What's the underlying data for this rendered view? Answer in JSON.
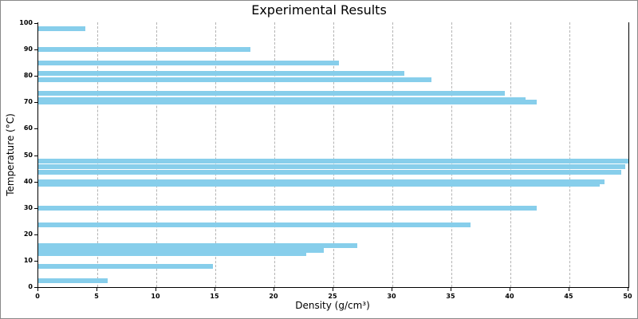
{
  "window": {
    "background_color": "#ffffff",
    "border_color": "#8a8a8a"
  },
  "chart_data": {
    "type": "bar",
    "orientation": "horizontal",
    "title": "Experimental Results",
    "xlabel": "Density (g/cm³)",
    "ylabel": "Temperature (°C)",
    "xlim": [
      0,
      50
    ],
    "ylim": [
      0,
      100
    ],
    "x_ticks": [
      0,
      5,
      10,
      15,
      20,
      25,
      30,
      35,
      40,
      45,
      50
    ],
    "y_ticks": [
      0,
      10,
      20,
      30,
      40,
      50,
      60,
      70,
      80,
      90,
      100
    ],
    "grid": "vertical-dashed-gray",
    "legend": "none",
    "bar_color": "#87CEEB",
    "axis_color": "#000000",
    "gridline_color": "#b4b4b4",
    "points": [
      {
        "temperature": 98,
        "density": 4.0
      },
      {
        "temperature": 90,
        "density": 18.0
      },
      {
        "temperature": 85,
        "density": 25.5
      },
      {
        "temperature": 81,
        "density": 31.0
      },
      {
        "temperature": 78.5,
        "density": 33.3
      },
      {
        "temperature": 73.5,
        "density": 39.5
      },
      {
        "temperature": 71,
        "density": 41.3
      },
      {
        "temperature": 70,
        "density": 42.2
      },
      {
        "temperature": 47.7,
        "density": 50.0
      },
      {
        "temperature": 45.5,
        "density": 49.7
      },
      {
        "temperature": 43.5,
        "density": 49.4
      },
      {
        "temperature": 40,
        "density": 48.0
      },
      {
        "temperature": 39,
        "density": 47.6
      },
      {
        "temperature": 30,
        "density": 42.2
      },
      {
        "temperature": 23.5,
        "density": 36.6
      },
      {
        "temperature": 15.7,
        "density": 27.0
      },
      {
        "temperature": 14,
        "density": 24.2
      },
      {
        "temperature": 12.7,
        "density": 22.7
      },
      {
        "temperature": 8,
        "density": 14.8
      },
      {
        "temperature": 2.5,
        "density": 5.9
      }
    ]
  }
}
